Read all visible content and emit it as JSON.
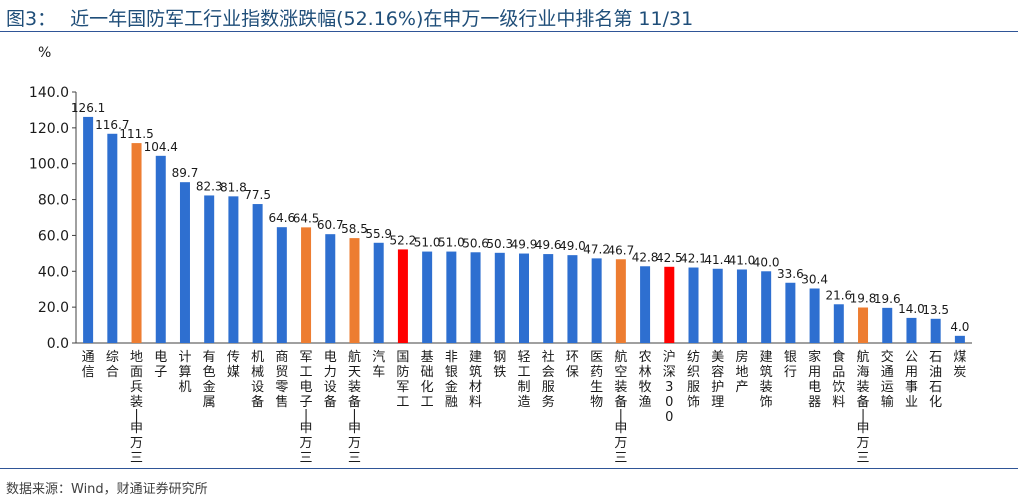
{
  "header": {
    "figure_label": "图3：",
    "title_text": "近一年国防军工行业指数涨跌幅(52.16%)在申万一级行业中排名第 11/31"
  },
  "footer": {
    "source": "数据来源：Wind，财通证券研究所"
  },
  "colors": {
    "default_bar": "#2e6fd0",
    "highlight_bar": "#ed7d31",
    "target_bar": "#ff0000",
    "title": "#1f4e79",
    "rule": "#2f5597"
  },
  "chart_data": {
    "type": "bar",
    "title": "近一年国防军工行业指数涨跌幅(52.16%)在申万一级行业中排名第 11/31",
    "ylabel": "%",
    "xlabel": "",
    "ylim": [
      0,
      140
    ],
    "yticks": [
      "0.0",
      "20.0",
      "40.0",
      "60.0",
      "80.0",
      "100.0",
      "120.0",
      "140.0"
    ],
    "grid": false,
    "legend": "none",
    "categories": [
      "通信",
      "综合",
      "地面兵装-申万三",
      "电子",
      "计算机",
      "有色金属",
      "传媒",
      "机械设备",
      "商贸零售",
      "军工电子-申万三",
      "电力设备",
      "航天装备-申万三",
      "汽车",
      "国防军工",
      "基础化工",
      "非银金融",
      "建筑材料",
      "钢铁",
      "轻工制造",
      "社会服务",
      "环保",
      "医药生物",
      "航空装备-申万三",
      "农林牧渔",
      "沪深300",
      "纺织服饰",
      "美容护理",
      "房地产",
      "建筑装饰",
      "银行",
      "家用电器",
      "食品饮料",
      "航海装备-申万三",
      "交通运输",
      "公用事业",
      "石油石化",
      "煤炭"
    ],
    "values": [
      126.1,
      116.7,
      111.5,
      104.4,
      89.7,
      82.3,
      81.8,
      77.5,
      64.6,
      64.5,
      60.7,
      58.5,
      55.9,
      52.2,
      51.0,
      51.0,
      50.6,
      50.3,
      49.9,
      49.6,
      49.0,
      47.2,
      46.7,
      42.8,
      42.5,
      42.1,
      41.4,
      41.0,
      40.0,
      33.6,
      30.4,
      21.6,
      19.8,
      19.6,
      14.0,
      13.5,
      4.0
    ],
    "value_labels": [
      "126.1",
      "116.7",
      "111.5",
      "104.4",
      "89.7",
      "82.3",
      "81.8",
      "77.5",
      "64.6",
      "64.5",
      "60.7",
      "58.5",
      "55.9",
      "52.2",
      "51.0",
      "51.0",
      "50.6",
      "50.3",
      "49.9",
      "49.6",
      "49.0",
      "47.2",
      "46.7",
      "42.8",
      "42.5",
      "42.1",
      "41.4",
      "41.0",
      "40.0",
      "33.6",
      "30.4",
      "21.6",
      "19.8",
      "19.6",
      "14.0",
      "13.5",
      "4.0"
    ],
    "highlight": [
      "normal",
      "normal",
      "orange",
      "normal",
      "normal",
      "normal",
      "normal",
      "normal",
      "normal",
      "orange",
      "normal",
      "orange",
      "normal",
      "red",
      "normal",
      "normal",
      "normal",
      "normal",
      "normal",
      "normal",
      "normal",
      "normal",
      "orange",
      "normal",
      "red",
      "normal",
      "normal",
      "normal",
      "normal",
      "normal",
      "normal",
      "normal",
      "orange",
      "normal",
      "normal",
      "normal",
      "normal"
    ]
  }
}
